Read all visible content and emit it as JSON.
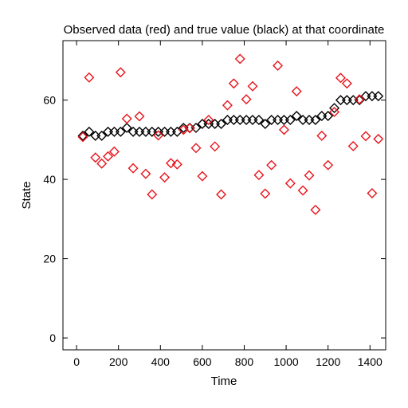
{
  "chart_data": {
    "type": "scatter",
    "title": "Observed data (red) and true value (black) at that coordinate",
    "xlabel": "Time",
    "ylabel": "State",
    "xlim": [
      -65,
      1475
    ],
    "ylim": [
      -3,
      75
    ],
    "xticks": [
      0,
      200,
      400,
      600,
      800,
      1000,
      1200,
      1400
    ],
    "yticks": [
      0,
      20,
      40,
      60
    ],
    "grid": false,
    "marker": "diamond",
    "series": [
      {
        "name": "Observed data",
        "color": "#e8141b",
        "points": [
          [
            30,
            50.7
          ],
          [
            60,
            65.7
          ],
          [
            90,
            45.5
          ],
          [
            120,
            44.0
          ],
          [
            150,
            45.8
          ],
          [
            180,
            47.0
          ],
          [
            210,
            67.0
          ],
          [
            240,
            55.3
          ],
          [
            270,
            42.8
          ],
          [
            300,
            55.9
          ],
          [
            330,
            41.4
          ],
          [
            360,
            36.2
          ],
          [
            390,
            51.1
          ],
          [
            420,
            40.5
          ],
          [
            450,
            44.1
          ],
          [
            480,
            43.8
          ],
          [
            510,
            52.5
          ],
          [
            540,
            52.9
          ],
          [
            570,
            47.9
          ],
          [
            600,
            40.8
          ],
          [
            630,
            55.0
          ],
          [
            660,
            48.3
          ],
          [
            690,
            36.2
          ],
          [
            720,
            58.7
          ],
          [
            750,
            64.2
          ],
          [
            780,
            70.4
          ],
          [
            810,
            60.2
          ],
          [
            840,
            63.5
          ],
          [
            870,
            41.1
          ],
          [
            900,
            36.4
          ],
          [
            930,
            43.6
          ],
          [
            960,
            68.7
          ],
          [
            990,
            52.5
          ],
          [
            1020,
            39.0
          ],
          [
            1050,
            62.2
          ],
          [
            1080,
            37.2
          ],
          [
            1110,
            41.0
          ],
          [
            1140,
            32.3
          ],
          [
            1170,
            51.0
          ],
          [
            1200,
            43.6
          ],
          [
            1230,
            57.0
          ],
          [
            1260,
            65.6
          ],
          [
            1290,
            64.2
          ],
          [
            1320,
            48.4
          ],
          [
            1350,
            60.2
          ],
          [
            1380,
            50.9
          ],
          [
            1410,
            36.5
          ],
          [
            1440,
            50.2
          ]
        ]
      },
      {
        "name": "True value",
        "color": "#000000",
        "points": [
          [
            30,
            51
          ],
          [
            60,
            52
          ],
          [
            90,
            51
          ],
          [
            120,
            51
          ],
          [
            150,
            52
          ],
          [
            180,
            52
          ],
          [
            210,
            52
          ],
          [
            240,
            53
          ],
          [
            270,
            52
          ],
          [
            300,
            52
          ],
          [
            330,
            52
          ],
          [
            360,
            52
          ],
          [
            390,
            52
          ],
          [
            420,
            52
          ],
          [
            450,
            52
          ],
          [
            480,
            52
          ],
          [
            510,
            53
          ],
          [
            540,
            53
          ],
          [
            570,
            53
          ],
          [
            600,
            54
          ],
          [
            630,
            54
          ],
          [
            660,
            54
          ],
          [
            690,
            54
          ],
          [
            720,
            55
          ],
          [
            750,
            55
          ],
          [
            780,
            55
          ],
          [
            810,
            55
          ],
          [
            840,
            55
          ],
          [
            870,
            55
          ],
          [
            900,
            54
          ],
          [
            930,
            55
          ],
          [
            960,
            55
          ],
          [
            990,
            55
          ],
          [
            1020,
            55
          ],
          [
            1050,
            56
          ],
          [
            1080,
            55
          ],
          [
            1110,
            55
          ],
          [
            1140,
            55
          ],
          [
            1170,
            56
          ],
          [
            1200,
            56
          ],
          [
            1230,
            58
          ],
          [
            1260,
            60
          ],
          [
            1290,
            60
          ],
          [
            1320,
            60
          ],
          [
            1350,
            60
          ],
          [
            1380,
            61
          ],
          [
            1410,
            61
          ],
          [
            1440,
            61
          ]
        ]
      }
    ]
  }
}
